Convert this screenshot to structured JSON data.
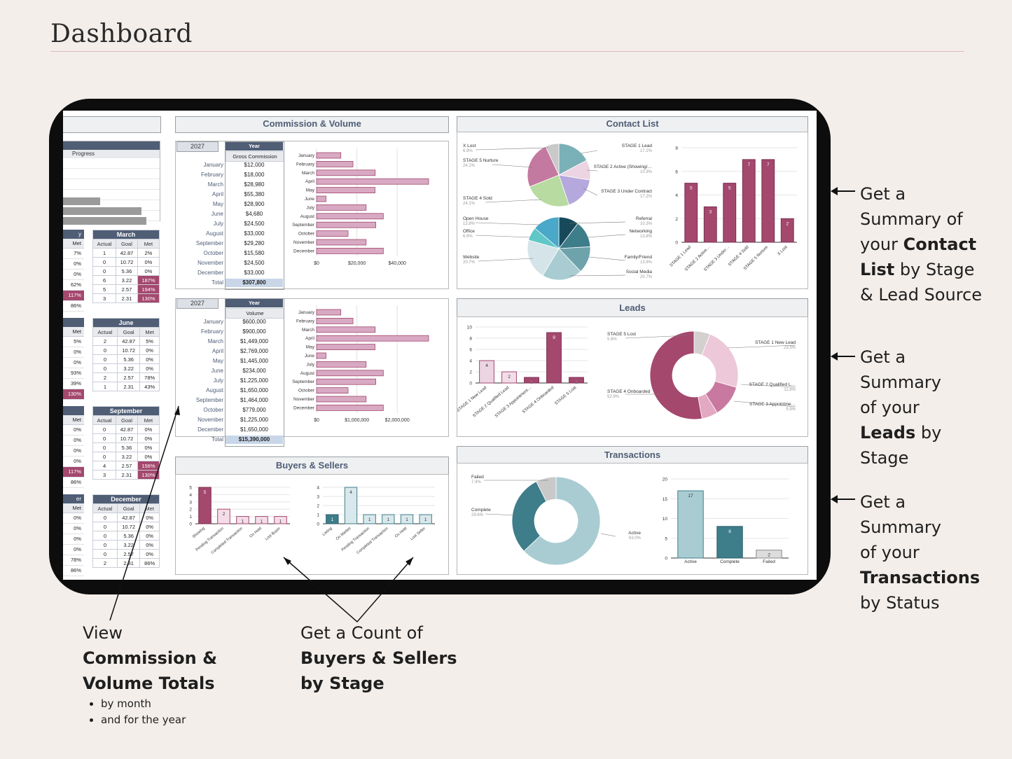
{
  "header": {
    "title": "Dashboard"
  },
  "left_strip": {
    "title_fragment": "s",
    "progress_header": "Progress",
    "bars": [
      0.4,
      0.83,
      0.88
    ],
    "tables": [
      {
        "name": "March",
        "cols": [
          "Actual",
          "Goal",
          "Met"
        ],
        "partial_header": "y",
        "partial_met": [
          "7%",
          "0%",
          "0%",
          "62%",
          "117%",
          "86%"
        ],
        "rows": [
          [
            "1",
            "42.87",
            "2%"
          ],
          [
            "0",
            "10.72",
            "0%"
          ],
          [
            "0",
            "5.36",
            "0%"
          ],
          [
            "6",
            "3.22",
            "187%"
          ],
          [
            "5",
            "2.57",
            "194%"
          ],
          [
            "3",
            "2.31",
            "130%"
          ]
        ]
      },
      {
        "name": "June",
        "cols": [
          "Actual",
          "Goal",
          "Met"
        ],
        "partial_met": [
          "5%",
          "0%",
          "0%",
          "93%",
          "39%",
          "130%"
        ],
        "rows": [
          [
            "2",
            "42.87",
            "5%"
          ],
          [
            "0",
            "10.72",
            "0%"
          ],
          [
            "0",
            "5.36",
            "0%"
          ],
          [
            "0",
            "3.22",
            "0%"
          ],
          [
            "2",
            "2.57",
            "78%"
          ],
          [
            "1",
            "2.31",
            "43%"
          ]
        ]
      },
      {
        "name": "September",
        "cols": [
          "Actual",
          "Goal",
          "Met"
        ],
        "partial_met": [
          "0%",
          "0%",
          "0%",
          "0%",
          "117%",
          "86%"
        ],
        "rows": [
          [
            "0",
            "42.87",
            "0%"
          ],
          [
            "0",
            "10.72",
            "0%"
          ],
          [
            "0",
            "5.36",
            "0%"
          ],
          [
            "0",
            "3.22",
            "0%"
          ],
          [
            "4",
            "2.57",
            "156%"
          ],
          [
            "3",
            "2.31",
            "130%"
          ]
        ]
      },
      {
        "name": "December",
        "cols": [
          "Actual",
          "Goal",
          "Met"
        ],
        "partial_header": "er",
        "partial_met": [
          "0%",
          "0%",
          "0%",
          "0%",
          "78%",
          "86%"
        ],
        "rows": [
          [
            "0",
            "42.87",
            "0%"
          ],
          [
            "0",
            "10.72",
            "0%"
          ],
          [
            "0",
            "5.36",
            "0%"
          ],
          [
            "0",
            "3.22",
            "0%"
          ],
          [
            "0",
            "2.57",
            "0%"
          ],
          [
            "2",
            "2.31",
            "86%"
          ]
        ]
      }
    ]
  },
  "commission": {
    "title": "Commission & Volume",
    "year": "2027",
    "year_label": "Year",
    "gc_label": "Gross Commission",
    "vol_label": "Volume",
    "total_label": "Total",
    "months": [
      "January",
      "February",
      "March",
      "April",
      "May",
      "June",
      "July",
      "August",
      "September",
      "October",
      "November",
      "December"
    ],
    "gross_commission": [
      "$12,000",
      "$18,000",
      "$28,980",
      "$55,380",
      "$28,900",
      "$4,680",
      "$24,500",
      "$33,000",
      "$29,280",
      "$15,580",
      "$24,500",
      "$33,000"
    ],
    "gc_total": "$307,800",
    "volume": [
      "$600,000",
      "$900,000",
      "$1,449,000",
      "$2,769,000",
      "$1,445,000",
      "$234,000",
      "$1,225,000",
      "$1,650,000",
      "$1,464,000",
      "$779,000",
      "$1,225,000",
      "$1,650,000"
    ],
    "vol_total": "$15,390,000",
    "gc_values": [
      12000,
      18000,
      28980,
      55380,
      28900,
      4680,
      24500,
      33000,
      29280,
      15580,
      24500,
      33000
    ],
    "vol_values": [
      600000,
      900000,
      1449000,
      2769000,
      1445000,
      234000,
      1225000,
      1650000,
      1464000,
      779000,
      1225000,
      1650000
    ],
    "gc_ticks": [
      "$0",
      "$20,000",
      "$40,000"
    ],
    "vol_ticks": [
      "$0",
      "$1,000,000",
      "$2,000,000"
    ]
  },
  "contact": {
    "title": "Contact List",
    "stage_pie": [
      {
        "label": "X Lost",
        "pct": "6.9%",
        "color": "#c9c9c9"
      },
      {
        "label": "STAGE 5 Nurture",
        "pct": "24.1%",
        "color": "#c47aa0"
      },
      {
        "label": "STAGE 4 Sold",
        "pct": "24.1%",
        "color": "#b7dba0"
      },
      {
        "label": "STAGE 1 Lead",
        "pct": "17.2%",
        "color": "#7ab0b8"
      },
      {
        "label": "STAGE 2 Active (Showing/…",
        "pct": "10.3%",
        "color": "#ecd4e2"
      },
      {
        "label": "STAGE 3 Under Contract",
        "pct": "17.2%",
        "color": "#b4a8dc"
      }
    ],
    "source_pie": [
      {
        "label": "Open House",
        "pct": "13.8%",
        "color": "#4aa8c8"
      },
      {
        "label": "Office",
        "pct": "6.9%",
        "color": "#5fc7c7"
      },
      {
        "label": "Website",
        "pct": "20.7%",
        "color": "#d4e4e8"
      },
      {
        "label": "Referral",
        "pct": "10.3%",
        "color": "#17495b"
      },
      {
        "label": "Networking",
        "pct": "13.8%",
        "color": "#3e7d8a"
      },
      {
        "label": "Family/Friend",
        "pct": "13.8%",
        "color": "#6ea3ac"
      },
      {
        "label": "Social Media",
        "pct": "20.7%",
        "color": "#a8ccd2"
      }
    ],
    "bar": {
      "categories": [
        "STAGE 1 Lead",
        "STAGE 2 Active…",
        "STAGE 3 Under…",
        "STAGE 4 Sold",
        "STAGE 5 Nurture",
        "X Lost"
      ],
      "values": [
        5,
        3,
        5,
        7,
        7,
        2
      ],
      "yticks": [
        "0",
        "2",
        "4",
        "6",
        "8"
      ]
    }
  },
  "leads": {
    "title": "Leads",
    "bar": {
      "categories": [
        "STAGE 1 New Lead",
        "STAGE 2 Qualified Lead",
        "STAGE 3 Appointment…",
        "STAGE 4 Onboarded",
        "STAGE 5 Lost"
      ],
      "values": [
        4,
        2,
        1,
        9,
        1
      ],
      "yticks": [
        "0",
        "2",
        "4",
        "6",
        "8",
        "10"
      ]
    },
    "donut": [
      {
        "label": "STAGE 5 Lost",
        "pct": "5.9%",
        "color": "#d4d0d0"
      },
      {
        "label": "STAGE 1 New Lead",
        "pct": "23.5%",
        "color": "#ecc8d8"
      },
      {
        "label": "STAGE 2 Qualified L…",
        "pct": "11.8%",
        "color": "#c9799f"
      },
      {
        "label": "STAGE 3 Appointme…",
        "pct": "5.9%",
        "color": "#e3a8c2"
      },
      {
        "label": "STAGE 4 Onboarded",
        "pct": "52.9%",
        "color": "#a4486e"
      }
    ]
  },
  "buyers": {
    "title": "Buyers & Sellers",
    "buyers": {
      "categories": [
        "Showing",
        "Pending Transaction",
        "Completed Transaction",
        "On Hold",
        "Lost Buyer"
      ],
      "values": [
        5,
        2,
        1,
        1,
        1
      ],
      "yticks": [
        "0",
        "1",
        "2",
        "3",
        "4",
        "5"
      ]
    },
    "sellers": {
      "categories": [
        "Listing",
        "On Market",
        "Pending Transaction",
        "Completed Transaction",
        "On Hold",
        "Lost Seller"
      ],
      "values": [
        1,
        4,
        1,
        1,
        1,
        1
      ],
      "yticks": [
        "0",
        "1",
        "2",
        "3",
        "4"
      ]
    }
  },
  "transactions": {
    "title": "Transactions",
    "donut": [
      {
        "label": "Failed",
        "pct": "7.4%",
        "color": "#c9c9c9"
      },
      {
        "label": "Complete",
        "pct": "29.6%",
        "color": "#3e7d8a"
      },
      {
        "label": "Active",
        "pct": "63.0%",
        "color": "#a8ccd2"
      }
    ],
    "bar": {
      "categories": [
        "Active",
        "Complete",
        "Failed"
      ],
      "values": [
        17,
        8,
        2
      ],
      "yticks": [
        "0",
        "5",
        "10",
        "15",
        "20"
      ]
    }
  },
  "annotations": {
    "contact": {
      "line1": "Get a",
      "line2": "Summary of",
      "line3_pre": "your ",
      "line3_bold": "Contact",
      "line4_bold": "List",
      "line4_post": " by Stage",
      "line5": "& Lead Source"
    },
    "leads": {
      "line1": "Get a",
      "line2": "Summary",
      "line3": "of your",
      "line4_bold": "Leads",
      "line4_post": " by",
      "line5": "Stage"
    },
    "transactions": {
      "line1": "Get a",
      "line2": "Summary",
      "line3": "of your",
      "line4_bold": "Transactions",
      "line5": "by Status"
    },
    "commission": {
      "line1": "View",
      "line2_bold": "Commission &",
      "line3_bold": "Volume Totals",
      "bullet1": "by month",
      "bullet2": "and for the year"
    },
    "buyers": {
      "line1": "Get a Count of",
      "line2_bold": "Buyers & Sellers",
      "line3_bold": "by Stage"
    }
  }
}
